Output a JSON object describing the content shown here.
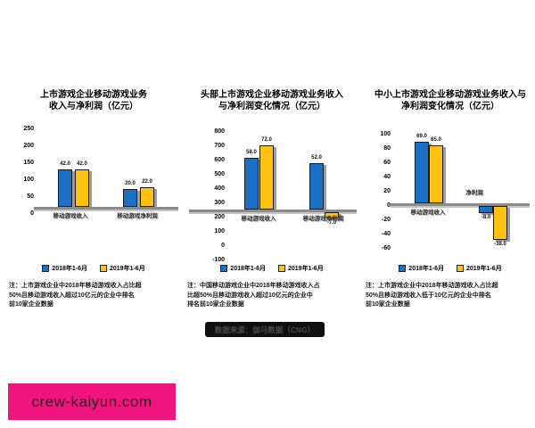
{
  "watermark": {
    "text": "crew-kaiyun.com",
    "bg_color": "#F2147E",
    "text_color": "#222222"
  },
  "source_badge": {
    "text": "数据来源：伽马数据（CNG）",
    "bg_color": "#0F0F0F",
    "text_color": "#4A4A4A"
  },
  "colors": {
    "bar_blue": "#1B6FC4",
    "bar_yellow": "#FFC112",
    "axis_gray": "#8A8A8A"
  },
  "legend": {
    "blue_label": "2018年1-6月",
    "yellow_label": "2019年1-6月"
  },
  "charts": [
    {
      "title_line1": "上市游戏企业移动游戏业务",
      "title_line2": "收入与净利润（亿元）",
      "y_ticks": [
        "250",
        "200",
        "150",
        "100",
        "50",
        "0"
      ],
      "chart_data": {
        "type": "bar",
        "categories": [
          "移动游戏收入",
          "移动游戏净利润"
        ],
        "series": [
          {
            "name": "2018年1-6月",
            "color": "#1B6FC4",
            "values": [
              42,
              20
            ]
          },
          {
            "name": "2019年1-6月",
            "color": "#FFC112",
            "values": [
              42,
              22
            ]
          }
        ],
        "legend_position": "bottom",
        "grid": false,
        "labels_legible": false,
        "estimated": true
      },
      "note_lines": [
        "注：上市游戏企业中2018年移动游戏收入占比超",
        "50%且移动游戏收入超过10亿元的企业中排名",
        "前10家企业数据"
      ]
    },
    {
      "title_line1": "头部上市游戏企业移动游戏业务收入",
      "title_line2": "与净利润变化情况（亿元）",
      "y_ticks": [
        "800",
        "700",
        "600",
        "500",
        "400",
        "300",
        "200",
        "100",
        "0",
        "-100"
      ],
      "chart_data": {
        "type": "bar",
        "categories": [
          "移动游戏收入",
          "移动游戏净利润"
        ],
        "series": [
          {
            "name": "2018年1-6月",
            "color": "#1B6FC4",
            "values": [
              58,
              52
            ]
          },
          {
            "name": "2019年1-6月",
            "color": "#FFC112",
            "values": [
              72,
              -7
            ]
          }
        ],
        "legend_position": "bottom",
        "grid": false,
        "labels_legible": false,
        "estimated": true
      },
      "note_lines": [
        "注：中国移动游戏企业中2018年移动游戏收入占",
        "比超50%且移动游戏收入超过10亿元的企业中",
        "排名前10家企业数据"
      ]
    },
    {
      "title_line1": "中小上市游戏企业移动游戏业务收入与",
      "title_line2": "净利润变化情况（亿元）",
      "y_ticks": [
        "100",
        "80",
        "60",
        "40",
        "20",
        "0",
        "-20",
        "-40",
        "-60"
      ],
      "chart_data": {
        "type": "bar",
        "categories": [
          "移动游戏收入",
          "净利润"
        ],
        "series": [
          {
            "name": "2018年1-6月",
            "color": "#1B6FC4",
            "values": [
              69,
              -8
            ]
          },
          {
            "name": "2019年1-6月",
            "color": "#FFC112",
            "values": [
              65,
              -38
            ]
          }
        ],
        "legend_position": "bottom",
        "grid": false,
        "labels_legible": false,
        "estimated": true
      },
      "note_lines": [
        "注：上市游戏企业中2018年移动游戏收入占比超",
        "50%且移动游戏收入低于10亿元的企业中排名",
        "前10家企业数据"
      ]
    }
  ]
}
